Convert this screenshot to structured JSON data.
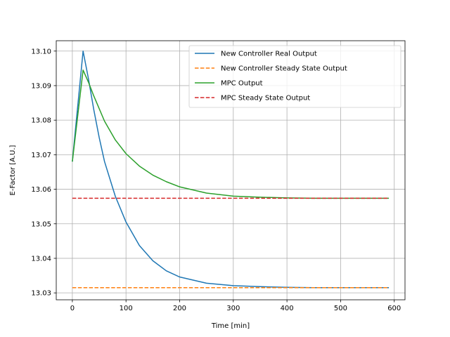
{
  "chart_data": {
    "type": "line",
    "title": "",
    "xlabel": "Time [min]",
    "ylabel": "E-Factor [A.U.]",
    "xlim": [
      -30,
      620
    ],
    "ylim": [
      13.028,
      13.103
    ],
    "xticks": [
      0,
      100,
      200,
      300,
      400,
      500,
      600
    ],
    "yticks": [
      13.03,
      13.04,
      13.05,
      13.06,
      13.07,
      13.08,
      13.09,
      13.1
    ],
    "xtick_labels": [
      "0",
      "100",
      "200",
      "300",
      "400",
      "500",
      "600"
    ],
    "ytick_labels": [
      "13.03",
      "13.04",
      "13.05",
      "13.06",
      "13.07",
      "13.08",
      "13.09",
      "13.10"
    ],
    "grid": true,
    "legend_position": "top-right",
    "series": [
      {
        "name": "New Controller Real Output",
        "color": "#1f77b4",
        "style": "solid",
        "x": [
          0,
          20,
          30,
          40,
          50,
          60,
          80,
          100,
          125,
          150,
          175,
          200,
          250,
          300,
          350,
          400,
          450,
          500,
          550,
          590
        ],
        "y": [
          13.068,
          13.1,
          13.092,
          13.083,
          13.075,
          13.068,
          13.058,
          13.0505,
          13.0437,
          13.0393,
          13.0364,
          13.0346,
          13.0328,
          13.0321,
          13.0318,
          13.0316,
          13.0315,
          13.0315,
          13.0315,
          13.0315
        ]
      },
      {
        "name": "New Controller Steady State Output",
        "color": "#ff7f0e",
        "style": "dashed",
        "x": [
          0,
          590
        ],
        "y": [
          13.0315,
          13.0315
        ]
      },
      {
        "name": "MPC Output",
        "color": "#2ca02c",
        "style": "solid",
        "x": [
          0,
          20,
          30,
          40,
          60,
          80,
          100,
          125,
          150,
          175,
          200,
          250,
          300,
          350,
          400,
          450,
          500,
          550,
          590
        ],
        "y": [
          13.068,
          13.0945,
          13.091,
          13.087,
          13.0797,
          13.0743,
          13.0703,
          13.0667,
          13.0641,
          13.0622,
          13.0607,
          13.0589,
          13.058,
          13.0577,
          13.0575,
          13.0574,
          13.0574,
          13.0574,
          13.0574
        ]
      },
      {
        "name": "MPC Steady State Output",
        "color": "#d62728",
        "style": "dashed",
        "x": [
          0,
          590
        ],
        "y": [
          13.0574,
          13.0574
        ]
      }
    ]
  }
}
